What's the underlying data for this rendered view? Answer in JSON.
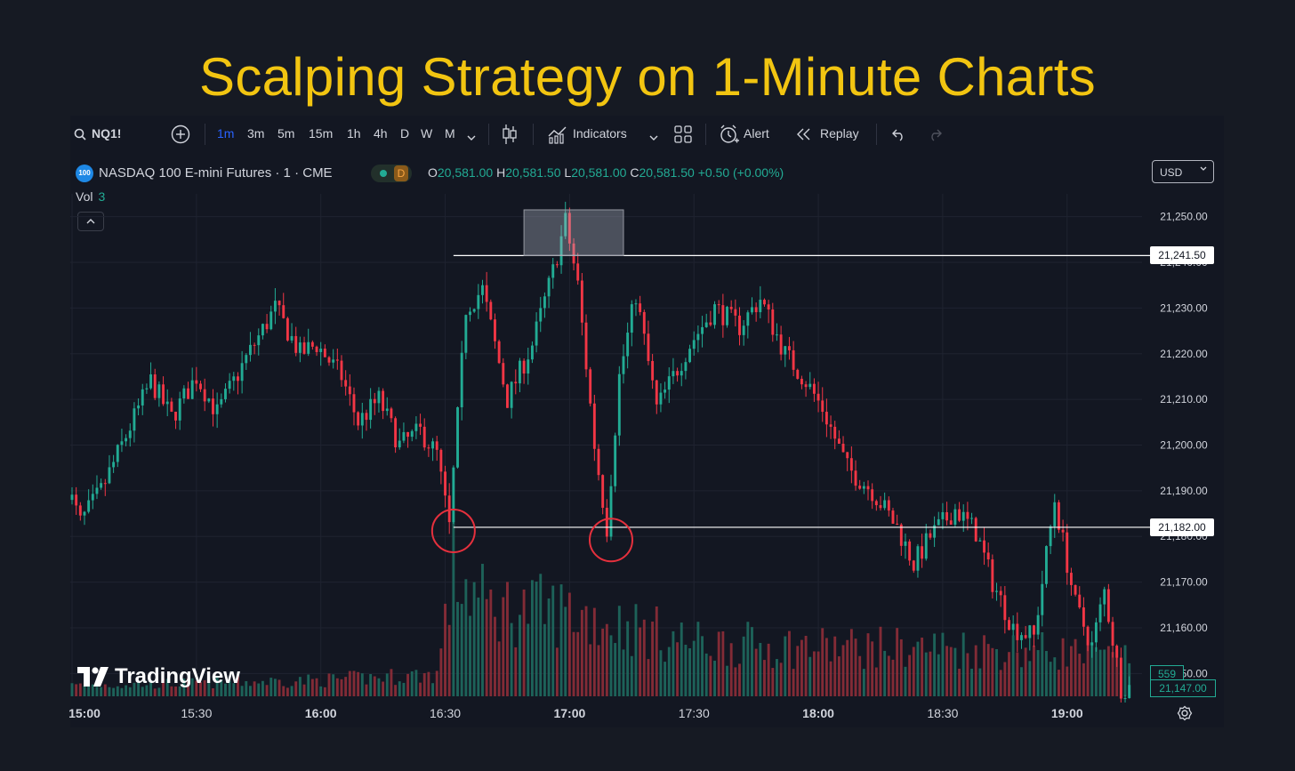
{
  "headline": "Scalping Strategy on 1-Minute Charts",
  "colors": {
    "up": "#22ab94",
    "down": "#f23645",
    "accent": "#2962ff",
    "headline": "#f2c511",
    "circle": "#e5303d",
    "background": "#131722"
  },
  "toolbar": {
    "symbol": "NQ1!",
    "add_icon": "plus-circle-icon",
    "timeframes": [
      "1m",
      "3m",
      "5m",
      "15m",
      "1h",
      "4h",
      "D",
      "W",
      "M"
    ],
    "active_timeframe": "1m",
    "indicators_label": "Indicators",
    "alert_label": "Alert",
    "replay_label": "Replay"
  },
  "legend": {
    "symbol_badge": "100",
    "symbol_name": "NASDAQ 100 E-mini Futures · 1 · CME",
    "status_letter": "D",
    "open_key": "O",
    "open": "20,581.00",
    "high_key": "H",
    "high": "20,581.50",
    "low_key": "L",
    "low": "20,581.00",
    "close_key": "C",
    "close": "20,581.50",
    "change": "+0.50 (+0.00%)",
    "vol_label": "Vol",
    "vol_value": "3"
  },
  "currency": "USD",
  "price_tags": {
    "resistance": "21,241.50",
    "support": "21,182.00",
    "volume": "559",
    "last_price": "21,147.00"
  },
  "watermark": "TradingView",
  "chart_data": {
    "type": "candlestick",
    "title": "Scalping Strategy on 1-Minute Charts",
    "symbol": "NASDAQ 100 E-mini Futures · 1 · CME",
    "timeframe": "1m",
    "time_range": [
      "14:59",
      "19:15"
    ],
    "x_ticks": [
      "15:00",
      "15:30",
      "16:00",
      "16:30",
      "17:00",
      "17:30",
      "18:00",
      "18:30",
      "19:00"
    ],
    "y_ticks": [
      21250,
      21240,
      21230,
      21220,
      21210,
      21200,
      21190,
      21180,
      21170,
      21160,
      21150
    ],
    "y_tick_labels": [
      "21,250.00",
      "21,240.00",
      "21,230.00",
      "21,220.00",
      "21,210.00",
      "21,200.00",
      "21,190.00",
      "21,180.00",
      "21,170.00",
      "21,160.00",
      "21,150.00"
    ],
    "ylim": [
      21145,
      21255
    ],
    "grid": true,
    "price_path": [
      [
        "14:59",
        21193
      ],
      [
        "15:03",
        21183
      ],
      [
        "15:08",
        21190
      ],
      [
        "15:14",
        21202
      ],
      [
        "15:20",
        21214
      ],
      [
        "15:25",
        21206
      ],
      [
        "15:31",
        21215
      ],
      [
        "15:36",
        21207
      ],
      [
        "15:43",
        21219
      ],
      [
        "15:50",
        21230
      ],
      [
        "15:56",
        21220
      ],
      [
        "16:00",
        21222
      ],
      [
        "16:06",
        21215
      ],
      [
        "16:10",
        21205
      ],
      [
        "16:15",
        21210
      ],
      [
        "16:20",
        21200
      ],
      [
        "16:25",
        21203
      ],
      [
        "16:29",
        21198
      ],
      [
        "16:32",
        21182
      ],
      [
        "16:36",
        21230
      ],
      [
        "16:40",
        21234
      ],
      [
        "16:46",
        21210
      ],
      [
        "16:52",
        21222
      ],
      [
        "16:57",
        21238
      ],
      [
        "17:00",
        21249
      ],
      [
        "17:03",
        21235
      ],
      [
        "17:07",
        21200
      ],
      [
        "17:10",
        21182
      ],
      [
        "17:13",
        21215
      ],
      [
        "17:17",
        21233
      ],
      [
        "17:22",
        21208
      ],
      [
        "17:30",
        21222
      ],
      [
        "17:36",
        21230
      ],
      [
        "17:42",
        21226
      ],
      [
        "17:47",
        21232
      ],
      [
        "17:53",
        21220
      ],
      [
        "17:58",
        21214
      ],
      [
        "18:02",
        21208
      ],
      [
        "18:08",
        21195
      ],
      [
        "18:14",
        21190
      ],
      [
        "18:20",
        21182
      ],
      [
        "18:24",
        21174
      ],
      [
        "18:28",
        21180
      ],
      [
        "18:34",
        21186
      ],
      [
        "18:39",
        21181
      ],
      [
        "18:43",
        21170
      ],
      [
        "18:48",
        21160
      ],
      [
        "18:53",
        21158
      ],
      [
        "18:58",
        21188
      ],
      [
        "19:03",
        21165
      ],
      [
        "19:07",
        21156
      ],
      [
        "19:10",
        21168
      ],
      [
        "19:14",
        21147
      ]
    ],
    "volume_profile": [
      [
        "15:00",
        12
      ],
      [
        "16:00",
        18
      ],
      [
        "16:28",
        25
      ],
      [
        "16:32",
        140
      ],
      [
        "16:40",
        100
      ],
      [
        "17:00",
        95
      ],
      [
        "17:30",
        60
      ],
      [
        "18:00",
        55
      ],
      [
        "18:30",
        55
      ],
      [
        "19:00",
        50
      ],
      [
        "19:14",
        40
      ]
    ],
    "annotations": [
      {
        "type": "horizontal_line",
        "price": 21241.5,
        "from": "16:32",
        "label": "21,241.50"
      },
      {
        "type": "horizontal_line",
        "price": 21182,
        "from": "16:32",
        "label": "21,182.00"
      },
      {
        "type": "rectangle",
        "from": "16:49",
        "to": "17:13",
        "price_top": 21251.5,
        "price_bottom": 21241.5
      },
      {
        "type": "circle",
        "time": "16:32",
        "price": 21182
      },
      {
        "type": "circle",
        "time": "17:10",
        "price": 21180
      }
    ],
    "last_volume": 559,
    "last_price": 21147
  }
}
